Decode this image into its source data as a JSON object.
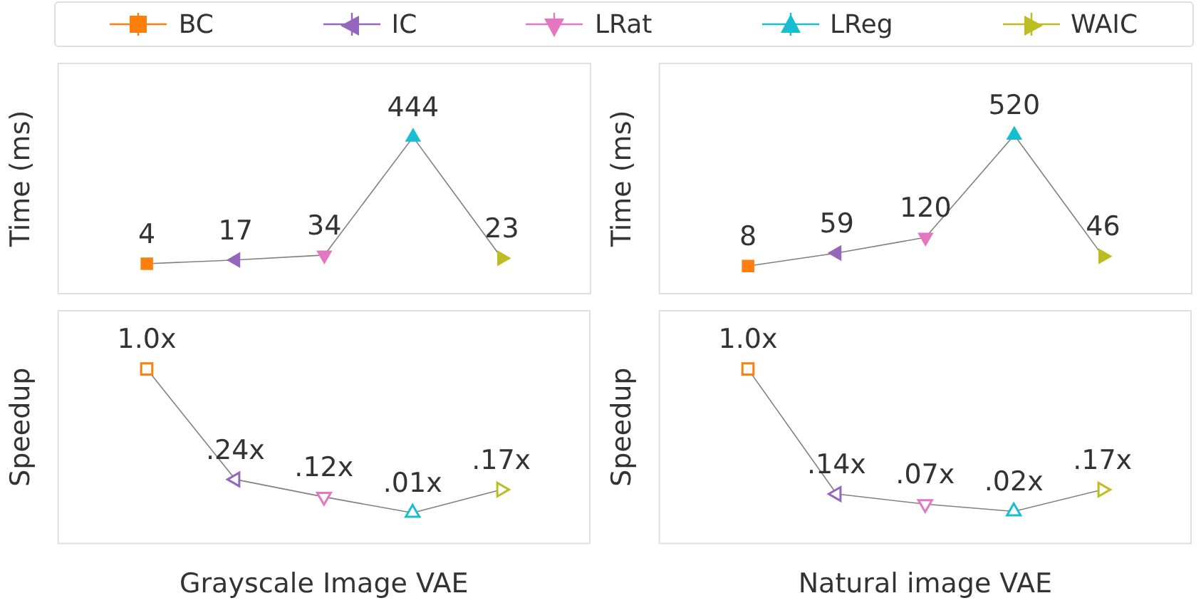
{
  "chart_data": [
    {
      "type": "other",
      "categories": [
        "BC",
        "IC",
        "LRat",
        "LReg",
        "WAIC"
      ],
      "colors": [
        "#ff7f0e",
        "#9467bd",
        "#e377c2",
        "#17becf",
        "#bcbd22"
      ]
    },
    {
      "type": "line",
      "ylabel": "Time (ms)",
      "categories": [
        null,
        null,
        null,
        null,
        null
      ],
      "tick_labels": false,
      "series": [
        {
          "color": "#808080",
          "colors": [
            "#ff7f0e",
            "#9467bd",
            "#e377c2",
            "#17becf",
            "#bcbd22"
          ],
          "marker": [
            "square",
            "triangle-left",
            "triangle-down",
            "triangle",
            "triangle-right"
          ],
          "values": [
            4,
            17,
            34,
            444,
            23
          ],
          "value_labels": [
            "4",
            "17",
            "34",
            "444",
            "23"
          ]
        }
      ]
    },
    {
      "type": "line",
      "ylabel": "Time (ms)",
      "categories": [
        null,
        null,
        null,
        null,
        null
      ],
      "tick_labels": false,
      "series": [
        {
          "color": "#808080",
          "colors": [
            "#ff7f0e",
            "#9467bd",
            "#e377c2",
            "#17becf",
            "#bcbd22"
          ],
          "marker": [
            "square",
            "triangle-left",
            "triangle-down",
            "triangle",
            "triangle-right"
          ],
          "values": [
            8,
            59,
            120,
            520,
            46
          ],
          "value_labels": [
            "8",
            "59",
            "120",
            "520",
            "46"
          ]
        }
      ]
    },
    {
      "type": "line",
      "ylabel": "Speedup",
      "xlabel": "Grayscale Image VAE",
      "categories": [
        null,
        null,
        null,
        null,
        null
      ],
      "tick_labels": false,
      "series": [
        {
          "color": "#808080",
          "colors": [
            "#ff7f0e",
            "#9467bd",
            "#e377c2",
            "#17becf",
            "#bcbd22"
          ],
          "marker": [
            "square-open",
            "triangle-left-open",
            "triangle-down-open",
            "triangle-open",
            "triangle-right-open"
          ],
          "values": [
            1.0,
            0.24,
            0.12,
            0.01,
            0.17
          ],
          "value_labels": [
            "1.0x",
            ".24x",
            ".12x",
            ".01x",
            ".17x"
          ]
        }
      ]
    },
    {
      "type": "line",
      "ylabel": "Speedup",
      "xlabel": "Natural image VAE",
      "categories": [
        null,
        null,
        null,
        null,
        null
      ],
      "tick_labels": false,
      "series": [
        {
          "color": "#808080",
          "colors": [
            "#ff7f0e",
            "#9467bd",
            "#e377c2",
            "#17becf",
            "#bcbd22"
          ],
          "marker": [
            "square-open",
            "triangle-left-open",
            "triangle-down-open",
            "triangle-open",
            "triangle-right-open"
          ],
          "values": [
            1.0,
            0.14,
            0.07,
            0.02,
            0.17
          ],
          "value_labels": [
            "1.0x",
            ".14x",
            ".07x",
            ".02x",
            ".17x"
          ]
        }
      ]
    }
  ]
}
